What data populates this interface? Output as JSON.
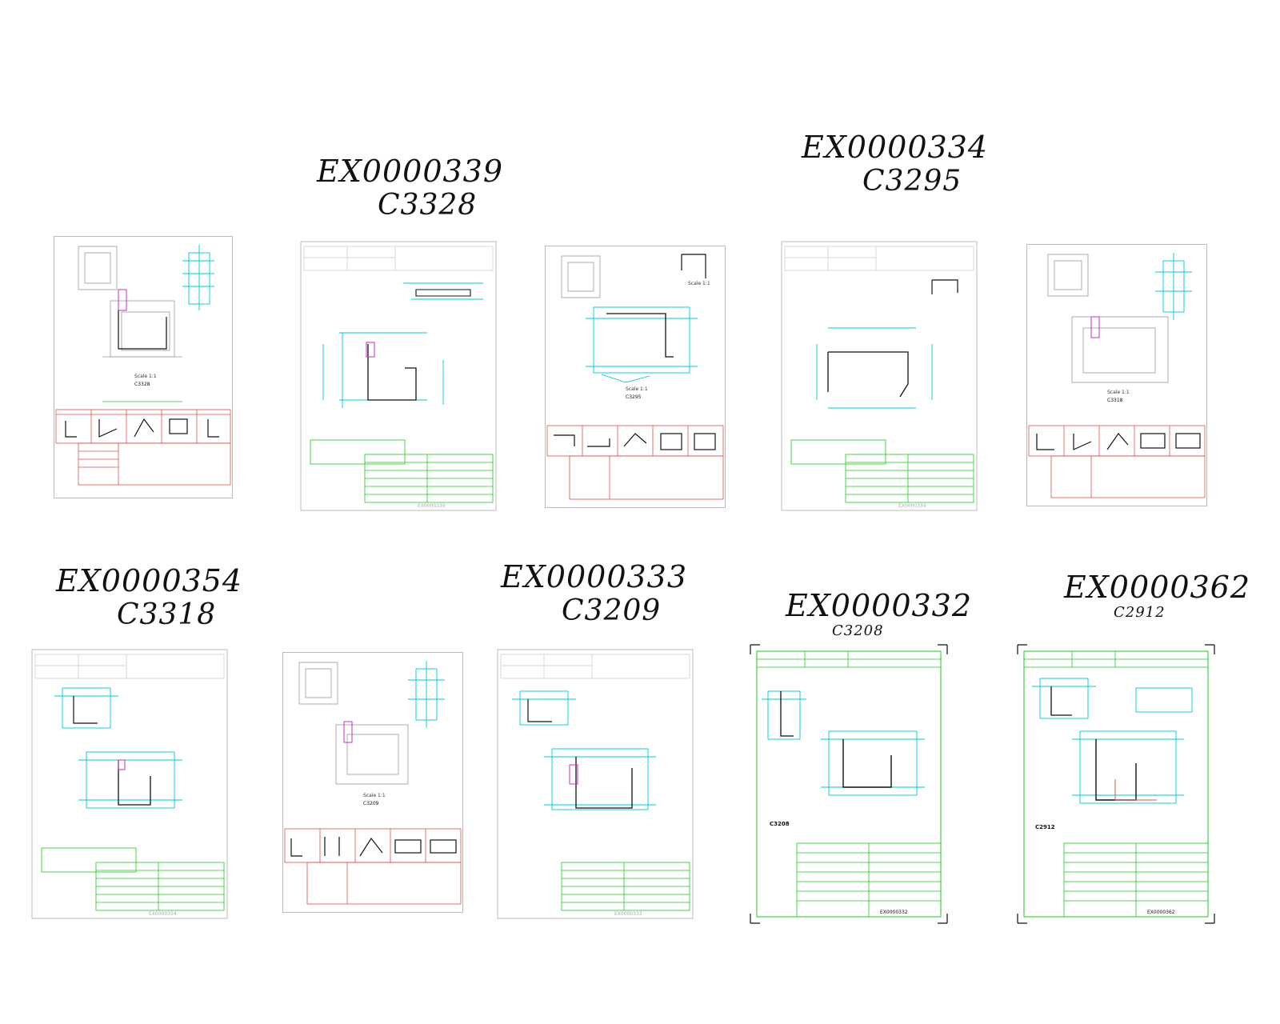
{
  "labels": [
    {
      "code": "EX0000339",
      "sub": "C3328"
    },
    {
      "code": "EX0000334",
      "sub": "C3295"
    },
    {
      "code": "EX0000354",
      "sub": "C3318"
    },
    {
      "code": "EX0000333",
      "sub": "C3209"
    },
    {
      "code": "EX0000332",
      "sub": "C3208"
    },
    {
      "code": "EX0000362",
      "sub": "C2912"
    }
  ],
  "sheets": [
    {
      "id": "sheet-c3328-assembly",
      "part": "C3328",
      "scale": "Scale 1:1",
      "kind": "assembly"
    },
    {
      "id": "sheet-ex0000339",
      "part": "C3328",
      "footer": "EX0000339",
      "kind": "profile"
    },
    {
      "id": "sheet-c3295-assembly",
      "part": "C3295",
      "scale": "Scale 1:1",
      "kind": "assembly"
    },
    {
      "id": "sheet-ex0000334",
      "part": "C3295",
      "footer": "EX0000334",
      "kind": "profile"
    },
    {
      "id": "sheet-c3318-assembly",
      "part": "C3318",
      "scale": "Scale 1:1",
      "kind": "assembly"
    },
    {
      "id": "sheet-ex0000354",
      "part": "C3318",
      "footer": "EX0000354",
      "kind": "profile"
    },
    {
      "id": "sheet-c3209-assembly",
      "part": "C3209",
      "scale": "Scale 1:1",
      "kind": "assembly"
    },
    {
      "id": "sheet-ex0000333",
      "part": "C3209",
      "footer": "EX0000333",
      "kind": "profile"
    },
    {
      "id": "sheet-ex0000332",
      "part": "C3208",
      "footer": "EX0000332",
      "kind": "profile-green"
    },
    {
      "id": "sheet-ex0000362",
      "part": "C2912",
      "footer": "EX0000362",
      "kind": "profile-green"
    }
  ],
  "colors": {
    "cyan": "#00c8d8",
    "green": "#22c822",
    "red": "#e05050",
    "magenta": "#c030c0",
    "gray": "#9a9a9a",
    "ink": "#111111"
  }
}
